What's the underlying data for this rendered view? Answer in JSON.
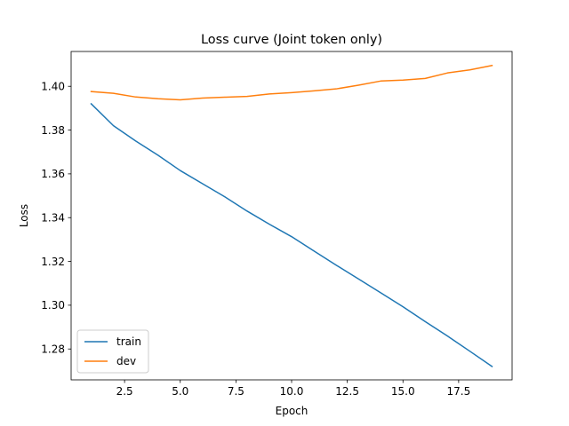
{
  "chart_data": {
    "type": "line",
    "title": "Loss curve (Joint token only)",
    "xlabel": "Epoch",
    "ylabel": "Loss",
    "xlim": [
      0.1,
      19.9
    ],
    "ylim": [
      1.2659,
      1.4159
    ],
    "xticks": [
      2.5,
      5.0,
      7.5,
      10.0,
      12.5,
      15.0,
      17.5
    ],
    "xtick_labels": [
      "2.5",
      "5.0",
      "7.5",
      "10.0",
      "12.5",
      "15.0",
      "17.5"
    ],
    "yticks": [
      1.28,
      1.3,
      1.32,
      1.34,
      1.36,
      1.38,
      1.4
    ],
    "ytick_labels": [
      "1.28",
      "1.30",
      "1.32",
      "1.34",
      "1.36",
      "1.38",
      "1.40"
    ],
    "grid": false,
    "legend_position": "lower-left",
    "x": [
      1,
      2,
      3,
      4,
      5,
      6,
      7,
      8,
      9,
      10,
      11,
      12,
      13,
      14,
      15,
      16,
      17,
      18,
      19
    ],
    "series": [
      {
        "name": "train",
        "color": "#1f77b4",
        "values": [
          1.392,
          1.382,
          1.375,
          1.3685,
          1.3615,
          1.3555,
          1.3495,
          1.343,
          1.337,
          1.3313,
          1.3248,
          1.3183,
          1.312,
          1.3057,
          1.2993,
          1.2925,
          1.2859,
          1.279,
          1.272
        ]
      },
      {
        "name": "dev",
        "color": "#ff7f0e",
        "values": [
          1.3976,
          1.3968,
          1.3951,
          1.3943,
          1.3938,
          1.3946,
          1.395,
          1.3954,
          1.3965,
          1.3971,
          1.3979,
          1.3988,
          1.4005,
          1.4024,
          1.4028,
          1.4036,
          1.4061,
          1.4075,
          1.4095
        ]
      }
    ]
  }
}
